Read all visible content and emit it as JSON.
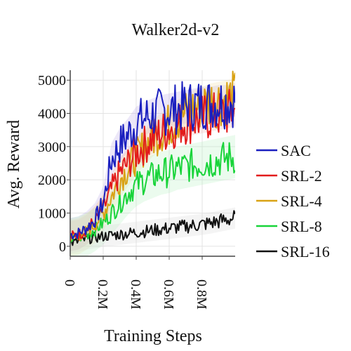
{
  "chart_data": {
    "type": "line",
    "title": "Walker2d-v2",
    "xlabel": "Training Steps",
    "ylabel": "Avg. Reward",
    "xlim": [
      0,
      1000000
    ],
    "ylim": [
      -300,
      5300
    ],
    "xticks": [
      {
        "value": 0,
        "label": "0"
      },
      {
        "value": 200000,
        "label": "0.2M"
      },
      {
        "value": 400000,
        "label": "0.4M"
      },
      {
        "value": 600000,
        "label": "0.6M"
      },
      {
        "value": 800000,
        "label": "0.8M"
      }
    ],
    "yticks": [
      {
        "value": 0,
        "label": "0"
      },
      {
        "value": 1000,
        "label": "1000"
      },
      {
        "value": 2000,
        "label": "2000"
      },
      {
        "value": 3000,
        "label": "3000"
      },
      {
        "value": 4000,
        "label": "4000"
      },
      {
        "value": 5000,
        "label": "5000"
      }
    ],
    "grid": true,
    "legend_position": "right",
    "shaded_bands": true,
    "series": [
      {
        "name": "SAC",
        "color": "#1a1fbf",
        "band_color": "#b9a8e6",
        "band_width": 500,
        "x": [
          0,
          50000,
          100000,
          150000,
          200000,
          250000,
          300000,
          350000,
          400000,
          450000,
          500000,
          550000,
          600000,
          650000,
          700000,
          750000,
          800000,
          850000,
          900000,
          950000,
          1000000
        ],
        "y": [
          350,
          400,
          550,
          800,
          1300,
          2600,
          3050,
          3350,
          3700,
          3850,
          3950,
          4050,
          4100,
          4150,
          4200,
          4250,
          4300,
          4300,
          4350,
          4350,
          4400
        ]
      },
      {
        "name": "SRL-2",
        "color": "#e21b1b",
        "band_color": "#f0b4b4",
        "band_width": 450,
        "x": [
          0,
          50000,
          100000,
          150000,
          200000,
          250000,
          300000,
          350000,
          400000,
          450000,
          500000,
          550000,
          600000,
          650000,
          700000,
          750000,
          800000,
          850000,
          900000,
          950000,
          1000000
        ],
        "y": [
          300,
          350,
          500,
          750,
          1100,
          1700,
          2200,
          2500,
          2800,
          3050,
          3250,
          3400,
          3550,
          3650,
          3750,
          3800,
          3850,
          3900,
          3950,
          4000,
          4050
        ]
      },
      {
        "name": "SRL-4",
        "color": "#d9a214",
        "band_color": "#f2dfa6",
        "band_width": 550,
        "x": [
          0,
          50000,
          100000,
          150000,
          200000,
          250000,
          300000,
          350000,
          400000,
          450000,
          500000,
          550000,
          600000,
          650000,
          700000,
          750000,
          800000,
          850000,
          900000,
          950000,
          1000000
        ],
        "y": [
          250,
          300,
          450,
          650,
          1000,
          1500,
          2000,
          2350,
          2700,
          3000,
          3250,
          3450,
          3650,
          3850,
          4000,
          4150,
          4250,
          4350,
          4400,
          4450,
          4500
        ]
      },
      {
        "name": "SRL-8",
        "color": "#19d43a",
        "band_color": "#b8efc3",
        "band_width": 650,
        "x": [
          0,
          50000,
          100000,
          150000,
          200000,
          250000,
          300000,
          350000,
          400000,
          450000,
          500000,
          550000,
          600000,
          650000,
          700000,
          750000,
          800000,
          850000,
          900000,
          950000,
          1000000
        ],
        "y": [
          200,
          250,
          350,
          500,
          700,
          1000,
          1300,
          1600,
          1850,
          2000,
          2100,
          2200,
          2250,
          2350,
          2400,
          2450,
          2500,
          2550,
          2600,
          2650,
          2700
        ]
      },
      {
        "name": "SRL-16",
        "color": "#111111",
        "band_color": "#d7d7d7",
        "band_width": 320,
        "x": [
          0,
          50000,
          100000,
          150000,
          200000,
          250000,
          300000,
          350000,
          400000,
          450000,
          500000,
          550000,
          600000,
          650000,
          700000,
          750000,
          800000,
          850000,
          900000,
          950000,
          1000000
        ],
        "y": [
          100,
          150,
          220,
          260,
          300,
          330,
          360,
          390,
          420,
          450,
          480,
          510,
          540,
          570,
          600,
          630,
          660,
          700,
          750,
          800,
          850
        ]
      }
    ]
  }
}
